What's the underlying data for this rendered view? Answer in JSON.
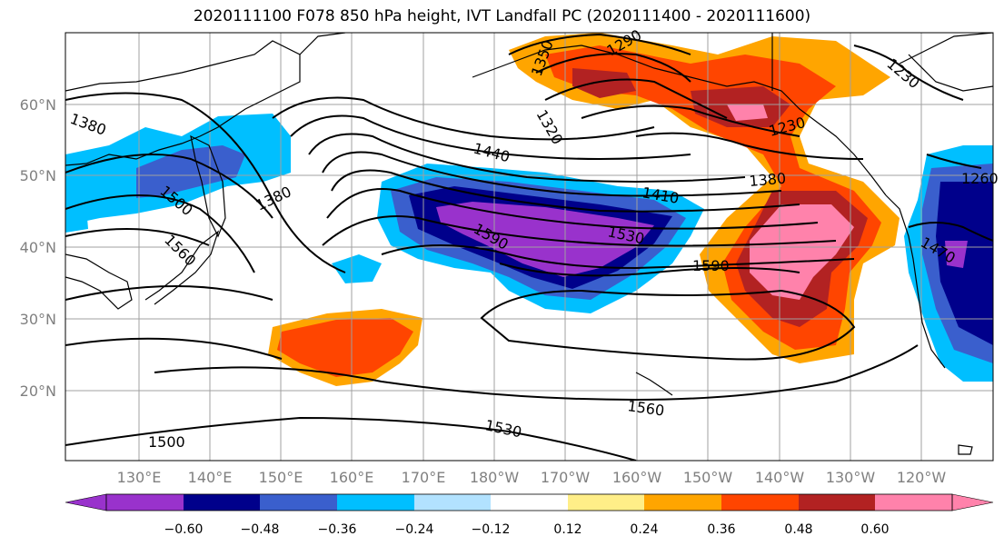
{
  "title": "2020111100 F078 850 hPa height, IVT Landfall PC (2020111400 - 2020111600)",
  "lat_ticks": [
    "60°N",
    "50°N",
    "40°N",
    "30°N",
    "20°N"
  ],
  "lon_ticks": [
    "130°E",
    "140°E",
    "150°E",
    "160°E",
    "170°E",
    "180°W",
    "170°W",
    "160°W",
    "150°W",
    "140°W",
    "130°W",
    "120°W"
  ],
  "contour_labels": [
    "1380",
    "1500",
    "1560",
    "1380",
    "1440",
    "1410",
    "1380",
    "1590",
    "1530",
    "1590",
    "1560",
    "1530",
    "1500",
    "1350",
    "1290",
    "1320",
    "1230",
    "1230",
    "1260",
    "1470"
  ],
  "colorbar": {
    "tick_labels": [
      "−0.60",
      "−0.48",
      "−0.36",
      "−0.24",
      "−0.12",
      "0.12",
      "0.24",
      "0.36",
      "0.48",
      "0.60"
    ],
    "colors": [
      "#9932cc",
      "#00008b",
      "#3a5fcd",
      "#00bfff",
      "#b2e2ff",
      "#ffffff",
      "#ffee88",
      "#ffa500",
      "#ff4500",
      "#b22222",
      "#ff82ab"
    ]
  },
  "shading_colors": {
    "neg_strong": "#9932cc",
    "neg_4": "#00008b",
    "neg_3": "#3a5fcd",
    "neg_2": "#00bfff",
    "neg_1": "#b2e2ff",
    "pos_1": "#ffee88",
    "pos_2": "#ffa500",
    "pos_3": "#ff4500",
    "pos_4": "#b22222",
    "pos_strong": "#ff82ab"
  }
}
